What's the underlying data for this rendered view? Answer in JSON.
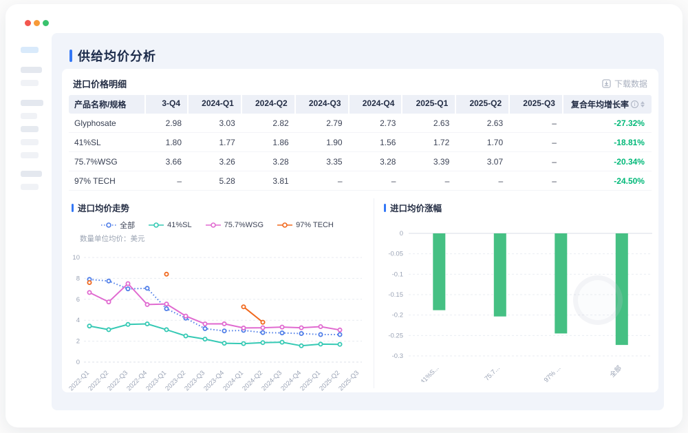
{
  "page_title": "供给均价分析",
  "colors": {
    "accent_blue": "#3377f6",
    "cagr_green": "#00b878",
    "bar_green": "#45c083",
    "traffic": [
      "#f3564e",
      "#f79a38",
      "#39c26d"
    ],
    "panel_bg": "#f1f4fa",
    "table_header_bg": "#edf0f7"
  },
  "table_card": {
    "title": "进口价格明细",
    "download_label": "下载数据",
    "download_icon": "download-icon",
    "columns": [
      "产品名称/规格",
      "3-Q4",
      "2024-Q1",
      "2024-Q2",
      "2024-Q3",
      "2024-Q4",
      "2025-Q1",
      "2025-Q2",
      "2025-Q3",
      "复合年均增长率"
    ],
    "cagr_header_icons": [
      "info-icon",
      "sort-icon"
    ],
    "rows": [
      {
        "name": "Glyphosate",
        "values": [
          "2.98",
          "3.03",
          "2.82",
          "2.79",
          "2.73",
          "2.63",
          "2.63",
          "–"
        ],
        "cagr": "-27.32%"
      },
      {
        "name": "41%SL",
        "values": [
          "1.80",
          "1.77",
          "1.86",
          "1.90",
          "1.56",
          "1.72",
          "1.70",
          "–"
        ],
        "cagr": "-18.81%"
      },
      {
        "name": "75.7%WSG",
        "values": [
          "3.66",
          "3.26",
          "3.28",
          "3.35",
          "3.28",
          "3.39",
          "3.07",
          "–"
        ],
        "cagr": "-20.34%"
      },
      {
        "name": "97% TECH",
        "values": [
          "–",
          "5.28",
          "3.81",
          "–",
          "–",
          "–",
          "–",
          "–"
        ],
        "cagr": "-24.50%"
      }
    ]
  },
  "chart_data": [
    {
      "type": "line",
      "title": "进口均价走势",
      "subtitle": "数量单位均价：美元",
      "legend_position": "top center",
      "grid": "horizontal dashed",
      "categories": [
        "2022-Q1",
        "2022-Q2",
        "2022-Q3",
        "2022-Q4",
        "2023-Q1",
        "2023-Q2",
        "2023-Q3",
        "2023-Q4",
        "2024-Q1",
        "2024-Q2",
        "2024-Q3",
        "2024-Q4",
        "2025-Q1",
        "2025-Q2",
        "2025-Q3"
      ],
      "ylim": [
        0,
        10
      ],
      "yticks": [
        0,
        2,
        4,
        6,
        8,
        10
      ],
      "series": [
        {
          "name": "全部",
          "color": "#4e7de8",
          "style": "dotted",
          "values": [
            7.9,
            7.75,
            7.0,
            7.05,
            5.1,
            4.2,
            3.2,
            2.98,
            3.03,
            2.82,
            2.79,
            2.73,
            2.63,
            2.63,
            null
          ]
        },
        {
          "name": "41%SL",
          "color": "#35c9b4",
          "style": "solid",
          "values": [
            3.45,
            3.1,
            3.6,
            3.65,
            3.1,
            2.5,
            2.2,
            1.8,
            1.77,
            1.86,
            1.9,
            1.56,
            1.72,
            1.7,
            null
          ]
        },
        {
          "name": "75.7%WSG",
          "color": "#e06ad0",
          "style": "solid",
          "values": [
            6.65,
            5.75,
            7.5,
            5.5,
            5.55,
            4.4,
            3.65,
            3.66,
            3.26,
            3.28,
            3.35,
            3.28,
            3.39,
            3.07,
            null
          ]
        },
        {
          "name": "97% TECH",
          "color": "#f0681d",
          "style": "solid",
          "values": [
            7.6,
            null,
            null,
            null,
            8.4,
            null,
            null,
            null,
            5.28,
            3.81,
            null,
            null,
            null,
            null,
            null
          ]
        }
      ]
    },
    {
      "type": "bar",
      "title": "进口均价涨幅",
      "categories": [
        "41%S...",
        "75.7...",
        "97% ...",
        "全部"
      ],
      "values": [
        -0.1881,
        -0.2034,
        -0.245,
        -0.2732
      ],
      "bar_color": "#45c083",
      "ylim": [
        -0.3,
        0
      ],
      "yticks": [
        0,
        -0.05,
        -0.1,
        -0.15,
        -0.2,
        -0.25,
        -0.3
      ],
      "grid": "horizontal dashed"
    }
  ]
}
